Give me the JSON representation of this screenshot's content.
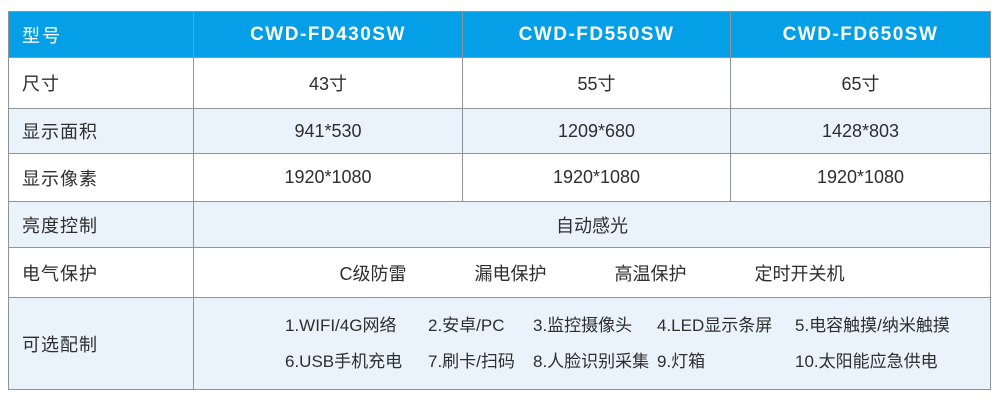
{
  "colors": {
    "header_bg": "#049FE6",
    "header_text": "#FFFFFF",
    "alt_row_bg": "#EAF3FB",
    "border": "#8F9497",
    "body_text": "#2E2E2E"
  },
  "table": {
    "header": {
      "label": "型号",
      "models": [
        "CWD-FD430SW",
        "CWD-FD550SW",
        "CWD-FD650SW"
      ]
    },
    "rows": [
      {
        "label": "尺寸",
        "values": [
          "43寸",
          "55寸",
          "65寸"
        ]
      },
      {
        "label": "显示面积",
        "values": [
          "941*530",
          "1209*680",
          "1428*803"
        ]
      },
      {
        "label": "显示像素",
        "values": [
          "1920*1080",
          "1920*1080",
          "1920*1080"
        ]
      }
    ],
    "brightness_row": {
      "label": "亮度控制",
      "value": "自动感光"
    },
    "protection_row": {
      "label": "电气保护",
      "items": [
        "C级防雷",
        "漏电保护",
        "高温保护",
        "定时开关机"
      ]
    },
    "options_row": {
      "label": "可选配制",
      "line1": [
        "1.WIFI/4G网络",
        "2.安卓/PC",
        "3.监控摄像头",
        "4.LED显示条屏",
        "5.电容触摸/纳米触摸"
      ],
      "line2": [
        "6.USB手机充电",
        "7.刷卡/扫码",
        "8.人脸识别采集",
        "9.灯箱",
        "10.太阳能应急供电"
      ]
    }
  }
}
